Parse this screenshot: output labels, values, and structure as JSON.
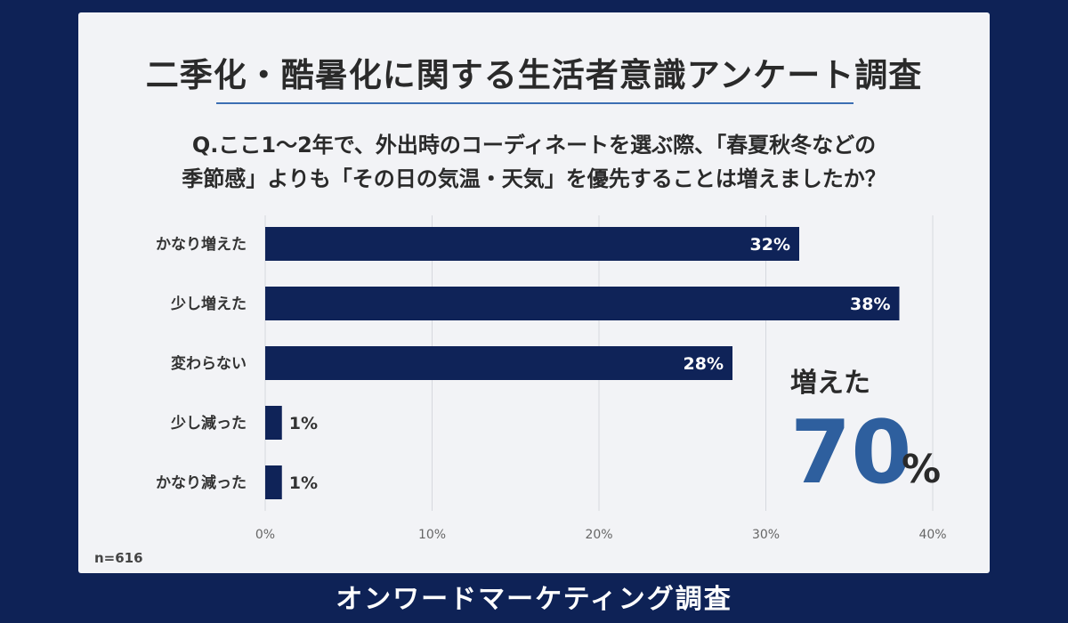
{
  "title": "二季化・酷暑化に関する生活者意識アンケート調査",
  "question": {
    "line1": "Q.ここ1～2年で、外出時のコーディネートを選ぶ際、「春夏秋冬などの",
    "line2": "季節感」よりも「その日の気温・天気」を優先することは増えましたか？"
  },
  "callout": {
    "label": "増えた",
    "number": "70",
    "unit": "%"
  },
  "sample_size": "n=616",
  "footer": "オンワードマーケティング調査",
  "colors": {
    "background": "#0e2256",
    "bar": "#0f2358",
    "accent": "#2e5f9e",
    "rule": "#3c6fb3"
  },
  "chart_data": {
    "type": "bar",
    "orientation": "horizontal",
    "categories": [
      "かなり増えた",
      "少し増えた",
      "変わらない",
      "少し減った",
      "かなり減った"
    ],
    "values": [
      32,
      38,
      28,
      1,
      1
    ],
    "value_labels": [
      "32%",
      "38%",
      "28%",
      "1%",
      "1%"
    ],
    "xlim": [
      0,
      40
    ],
    "x_ticks": [
      "0%",
      "10%",
      "20%",
      "30%",
      "40%"
    ],
    "grid": true,
    "title": "",
    "xlabel": "",
    "ylabel": ""
  }
}
